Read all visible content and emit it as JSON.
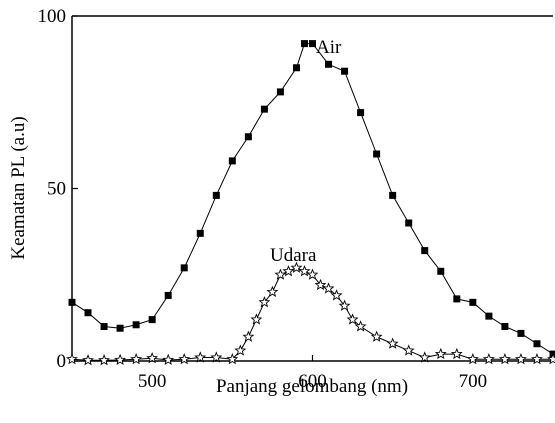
{
  "chart_data": {
    "type": "line",
    "title": "",
    "xlabel": "Panjang gelombang (nm)",
    "ylabel": "Keamatan PL (a.u)",
    "xlim": [
      450,
      750
    ],
    "ylim": [
      0,
      100
    ],
    "x_ticks": [
      500,
      600,
      700
    ],
    "x_tick_labels": [
      "500",
      "600",
      "700"
    ],
    "y_ticks": [
      0,
      50,
      100
    ],
    "y_tick_labels": [
      "0",
      "50",
      "100"
    ],
    "grid": false,
    "series": [
      {
        "name": "Air",
        "marker": "filled-square",
        "color": "#000000",
        "x": [
          450,
          460,
          470,
          480,
          490,
          500,
          510,
          520,
          530,
          540,
          550,
          560,
          570,
          580,
          590,
          595,
          600,
          610,
          620,
          630,
          640,
          650,
          660,
          670,
          680,
          690,
          700,
          710,
          720,
          730,
          740,
          750
        ],
        "values": [
          17,
          14,
          10,
          9.5,
          10.5,
          12,
          19,
          27,
          37,
          48,
          58,
          65,
          73,
          78,
          85,
          92,
          92,
          86,
          84,
          72,
          60,
          48,
          40,
          32,
          26,
          18,
          17,
          13,
          10,
          8,
          5,
          2
        ]
      },
      {
        "name": "Udara",
        "marker": "open-star",
        "color": "#000000",
        "x": [
          450,
          460,
          470,
          480,
          490,
          500,
          510,
          520,
          530,
          540,
          550,
          555,
          560,
          565,
          570,
          575,
          580,
          585,
          590,
          595,
          600,
          605,
          610,
          615,
          620,
          625,
          630,
          640,
          650,
          660,
          670,
          680,
          690,
          700,
          710,
          720,
          730,
          740,
          750
        ],
        "values": [
          0.5,
          0.2,
          0.2,
          0.3,
          0.5,
          0.8,
          0.3,
          0.5,
          1,
          1,
          0.5,
          3,
          7,
          12,
          17,
          20,
          25,
          26,
          27,
          26,
          25,
          22,
          21,
          19,
          16,
          12,
          10,
          7,
          5,
          3,
          1,
          2,
          2,
          0.5,
          0.5,
          0.5,
          0.5,
          0.5,
          0.5
        ]
      }
    ]
  }
}
